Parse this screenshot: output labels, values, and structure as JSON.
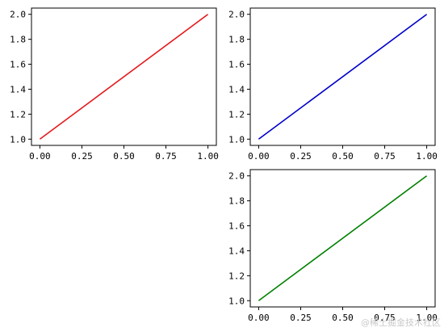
{
  "chart_data": [
    {
      "type": "line",
      "x": [
        0,
        1
      ],
      "series": [
        {
          "values": [
            1,
            2
          ],
          "color": "#e41a1c"
        }
      ],
      "title": "",
      "xlabel": "",
      "ylabel": "",
      "xlim": [
        -0.05,
        1.05
      ],
      "ylim": [
        0.95,
        2.05
      ],
      "xticks": [
        "0.00",
        "0.25",
        "0.50",
        "0.75",
        "1.00"
      ],
      "yticks": [
        "1.0",
        "1.2",
        "1.4",
        "1.6",
        "1.8",
        "2.0"
      ],
      "grid": false
    },
    {
      "type": "line",
      "x": [
        0,
        1
      ],
      "series": [
        {
          "values": [
            1,
            2
          ],
          "color": "#0000cc"
        }
      ],
      "title": "",
      "xlabel": "",
      "ylabel": "",
      "xlim": [
        -0.05,
        1.05
      ],
      "ylim": [
        0.95,
        2.05
      ],
      "xticks": [
        "0.00",
        "0.25",
        "0.50",
        "0.75",
        "1.00"
      ],
      "yticks": [
        "1.0",
        "1.2",
        "1.4",
        "1.6",
        "1.8",
        "2.0"
      ],
      "grid": false
    },
    {
      "type": "line",
      "x": [
        0,
        1
      ],
      "series": [
        {
          "values": [
            1,
            2
          ],
          "color": "#008000"
        }
      ],
      "title": "",
      "xlabel": "",
      "ylabel": "",
      "xlim": [
        -0.05,
        1.05
      ],
      "ylim": [
        0.95,
        2.05
      ],
      "xticks": [
        "0.00",
        "0.25",
        "0.50",
        "0.75",
        "1.00"
      ],
      "yticks": [
        "1.0",
        "1.2",
        "1.4",
        "1.6",
        "1.8",
        "2.0"
      ],
      "grid": false
    }
  ],
  "watermark": "@稀土掘金技术社区"
}
